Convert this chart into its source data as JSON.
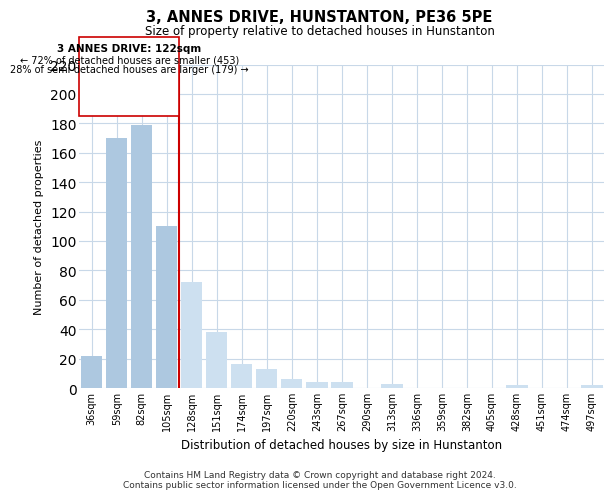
{
  "title": "3, ANNES DRIVE, HUNSTANTON, PE36 5PE",
  "subtitle": "Size of property relative to detached houses in Hunstanton",
  "xlabel": "Distribution of detached houses by size in Hunstanton",
  "ylabel": "Number of detached properties",
  "categories": [
    "36sqm",
    "59sqm",
    "82sqm",
    "105sqm",
    "128sqm",
    "151sqm",
    "174sqm",
    "197sqm",
    "220sqm",
    "243sqm",
    "267sqm",
    "290sqm",
    "313sqm",
    "336sqm",
    "359sqm",
    "382sqm",
    "405sqm",
    "428sqm",
    "451sqm",
    "474sqm",
    "497sqm"
  ],
  "values": [
    22,
    170,
    179,
    110,
    72,
    38,
    16,
    13,
    6,
    4,
    4,
    0,
    3,
    0,
    0,
    0,
    0,
    2,
    0,
    0,
    2
  ],
  "bar_color_left": "#adc8e0",
  "bar_color_right": "#cde0f0",
  "divider_index": 4,
  "annotation_title": "3 ANNES DRIVE: 122sqm",
  "annotation_line1": "← 72% of detached houses are smaller (453)",
  "annotation_line2": "28% of semi-detached houses are larger (179) →",
  "ylim": [
    0,
    220
  ],
  "yticks": [
    0,
    20,
    40,
    60,
    80,
    100,
    120,
    140,
    160,
    180,
    200,
    220
  ],
  "footer_line1": "Contains HM Land Registry data © Crown copyright and database right 2024.",
  "footer_line2": "Contains public sector information licensed under the Open Government Licence v3.0.",
  "background_color": "#ffffff",
  "grid_color": "#c8d8e8"
}
